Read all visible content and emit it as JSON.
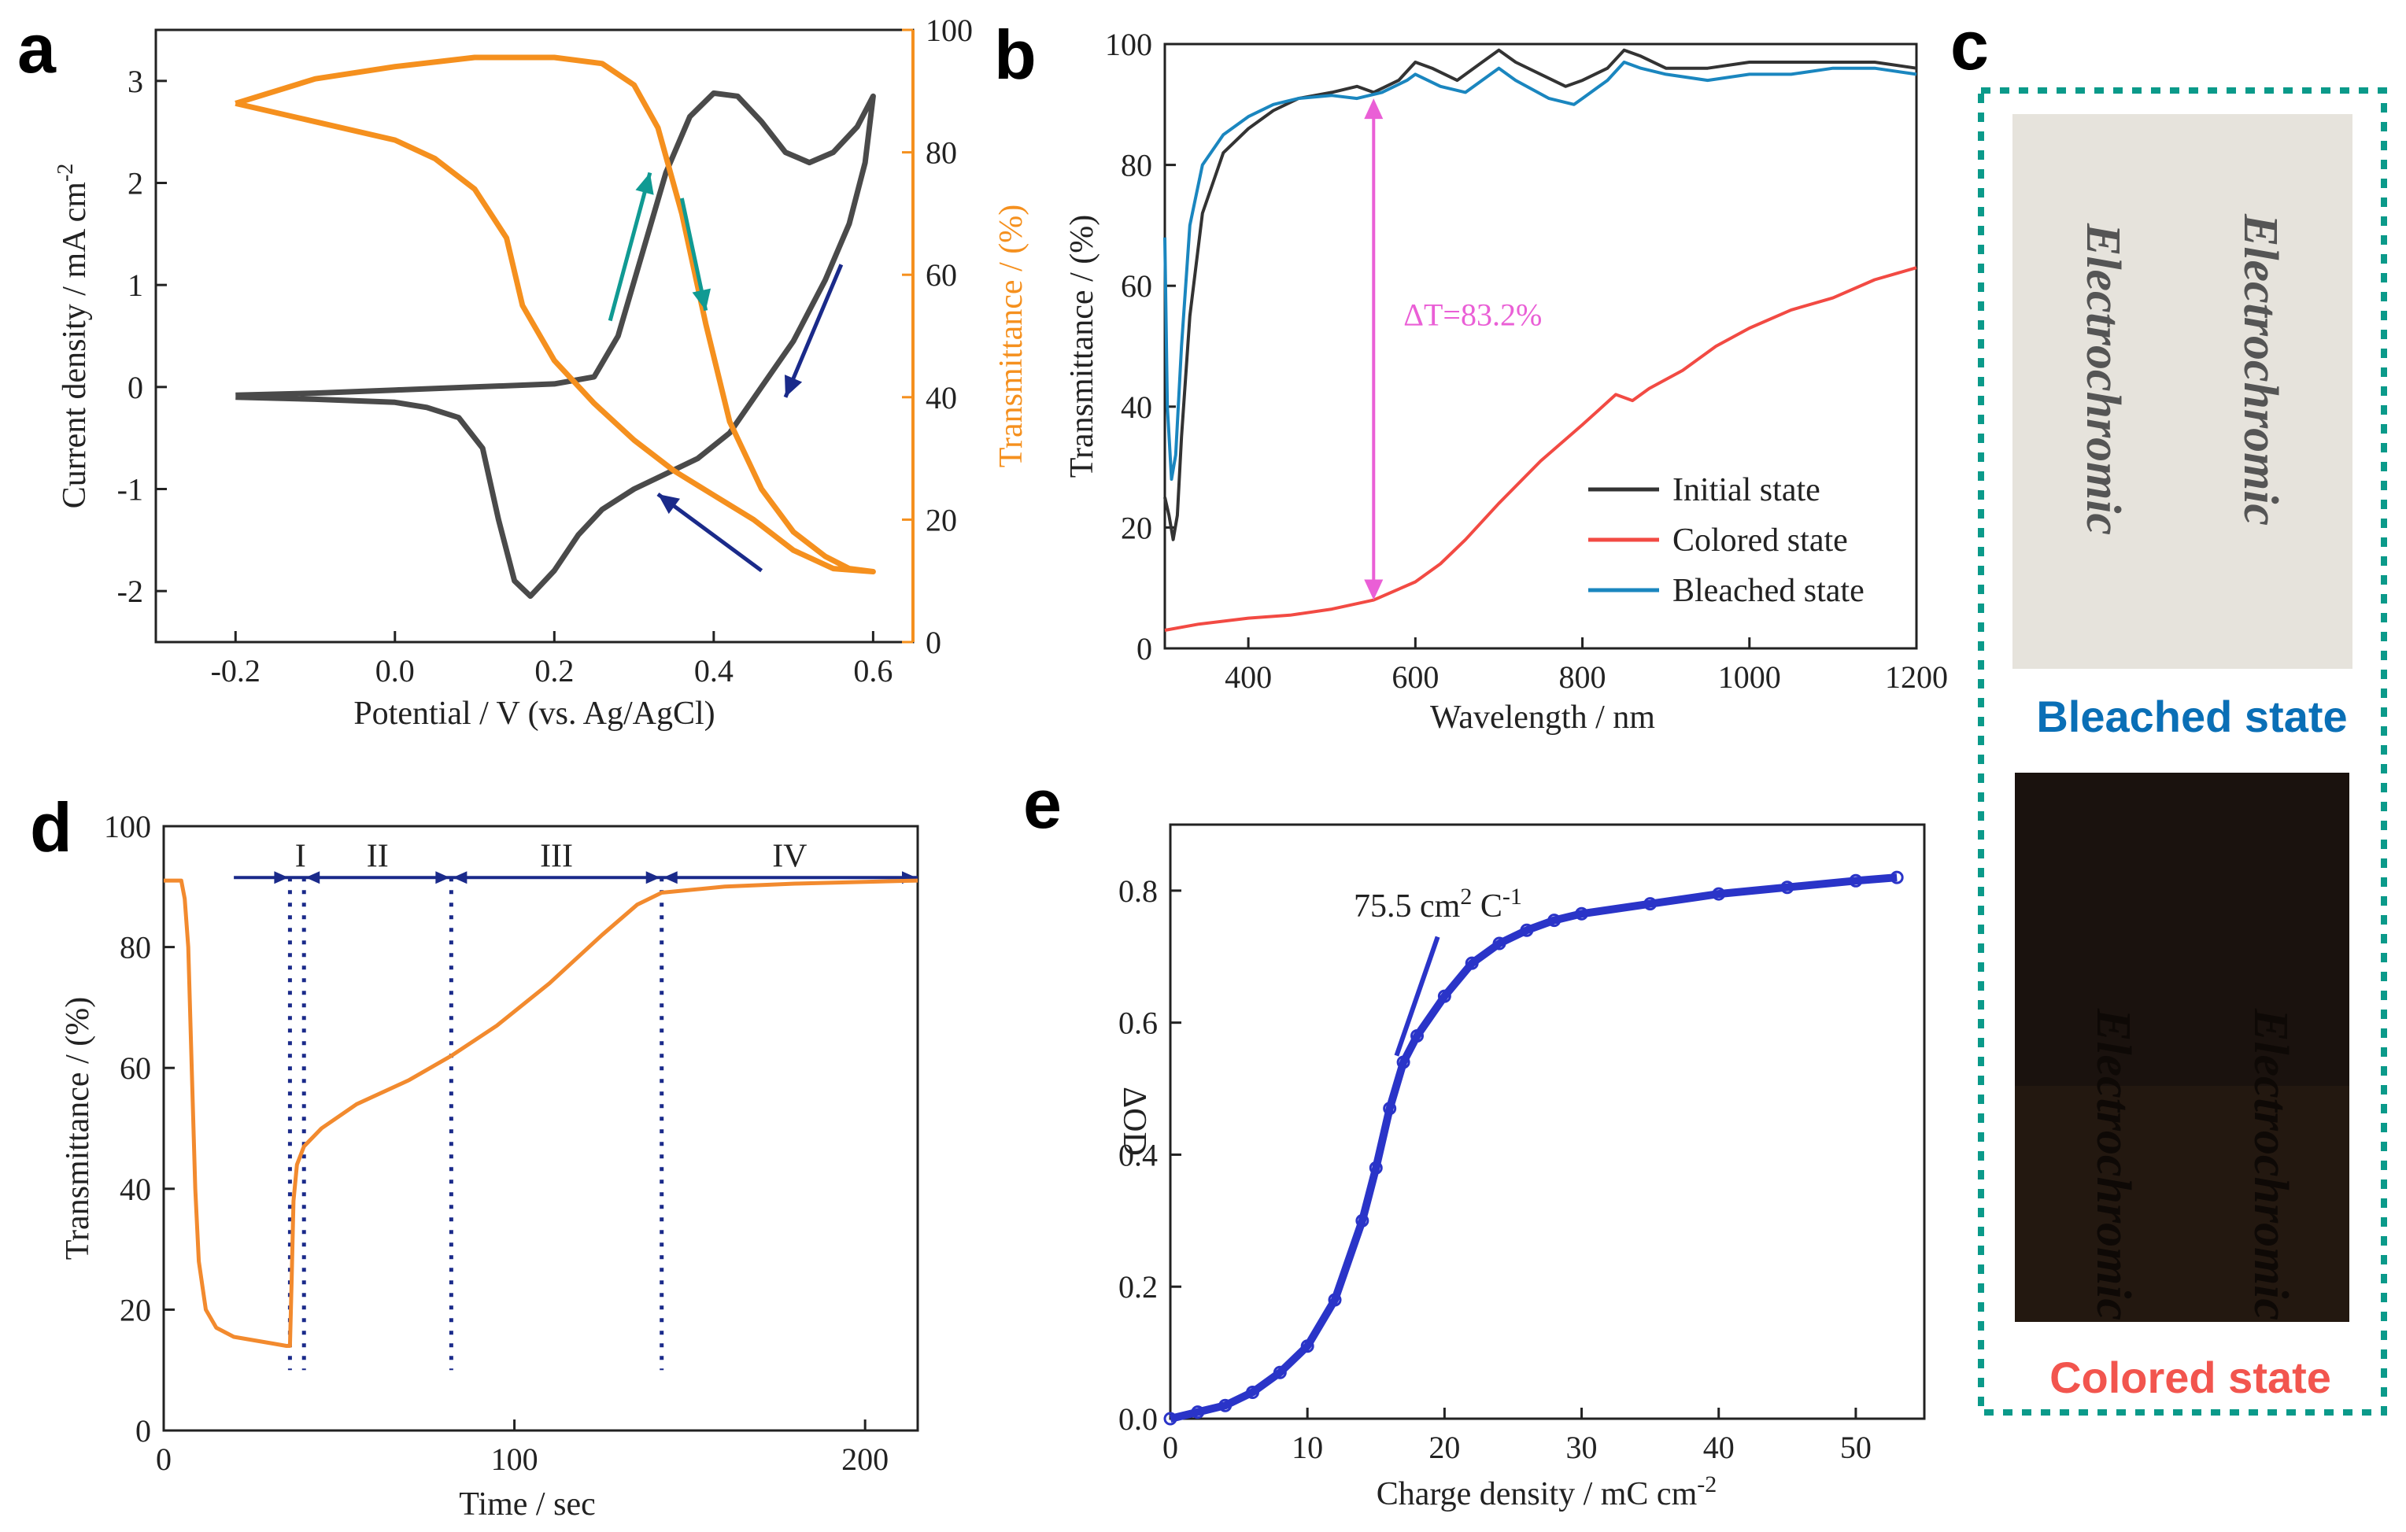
{
  "panels": {
    "a": {
      "label": "a"
    },
    "b": {
      "label": "b"
    },
    "c": {
      "label": "c",
      "top_caption": "Bleached state",
      "bottom_caption": "Colored state",
      "sample_text": "Electrochromic",
      "caption_color_top": "#0a6fb6",
      "caption_color_bottom": "#f2554e",
      "border_color": "#0b9a8a"
    },
    "d": {
      "label": "d"
    },
    "e": {
      "label": "e"
    }
  },
  "chart_data": [
    {
      "id": "a",
      "type": "line",
      "xlabel": "Potential / V (vs. Ag/AgCl)",
      "ylabel": "Current density / mA cm",
      "ylabel_sup": "-2",
      "y2label": "Transmittance / (%)",
      "xlim": [
        -0.3,
        0.65
      ],
      "ylim": [
        -2.5,
        3.5
      ],
      "y2lim": [
        0,
        100
      ],
      "xticks": [
        "-0.2",
        "0.0",
        "0.2",
        "0.4",
        "0.6"
      ],
      "yticks": [
        "-2",
        "-1",
        "0",
        "1",
        "2",
        "3"
      ],
      "y2ticks": [
        "0",
        "20",
        "40",
        "60",
        "80",
        "100"
      ],
      "colors": {
        "cv": "#4a4a4a",
        "trans": "#f5901e",
        "arrow_teal": "#109a93",
        "arrow_navy": "#1a2a8a"
      },
      "series": [
        {
          "name": "Current density (CV)",
          "axis": "left",
          "points": [
            [
              -0.2,
              -0.08
            ],
            [
              -0.1,
              -0.06
            ],
            [
              0.0,
              -0.03
            ],
            [
              0.1,
              0.0
            ],
            [
              0.2,
              0.03
            ],
            [
              0.25,
              0.1
            ],
            [
              0.28,
              0.5
            ],
            [
              0.31,
              1.3
            ],
            [
              0.34,
              2.1
            ],
            [
              0.37,
              2.65
            ],
            [
              0.4,
              2.88
            ],
            [
              0.43,
              2.85
            ],
            [
              0.46,
              2.6
            ],
            [
              0.49,
              2.3
            ],
            [
              0.52,
              2.2
            ],
            [
              0.55,
              2.3
            ],
            [
              0.58,
              2.55
            ],
            [
              0.6,
              2.85
            ],
            [
              0.59,
              2.2
            ],
            [
              0.57,
              1.6
            ],
            [
              0.54,
              1.05
            ],
            [
              0.5,
              0.45
            ],
            [
              0.46,
              0.0
            ],
            [
              0.42,
              -0.45
            ],
            [
              0.38,
              -0.7
            ],
            [
              0.34,
              -0.85
            ],
            [
              0.3,
              -1.0
            ],
            [
              0.26,
              -1.2
            ],
            [
              0.23,
              -1.45
            ],
            [
              0.2,
              -1.8
            ],
            [
              0.17,
              -2.05
            ],
            [
              0.15,
              -1.9
            ],
            [
              0.13,
              -1.3
            ],
            [
              0.11,
              -0.6
            ],
            [
              0.08,
              -0.3
            ],
            [
              0.04,
              -0.2
            ],
            [
              0.0,
              -0.15
            ],
            [
              -0.1,
              -0.12
            ],
            [
              -0.2,
              -0.1
            ]
          ]
        },
        {
          "name": "Transmittance",
          "axis": "right",
          "points": [
            [
              -0.2,
              88
            ],
            [
              -0.1,
              92
            ],
            [
              0.0,
              94
            ],
            [
              0.1,
              95.5
            ],
            [
              0.2,
              95.5
            ],
            [
              0.26,
              94.5
            ],
            [
              0.3,
              91
            ],
            [
              0.33,
              84
            ],
            [
              0.36,
              70
            ],
            [
              0.39,
              52
            ],
            [
              0.42,
              36
            ],
            [
              0.46,
              25
            ],
            [
              0.5,
              18
            ],
            [
              0.54,
              14
            ],
            [
              0.57,
              12
            ],
            [
              0.6,
              11.5
            ],
            [
              0.55,
              12
            ],
            [
              0.5,
              15
            ],
            [
              0.45,
              20
            ],
            [
              0.4,
              24
            ],
            [
              0.35,
              28
            ],
            [
              0.3,
              33
            ],
            [
              0.25,
              39
            ],
            [
              0.2,
              46
            ],
            [
              0.16,
              55
            ],
            [
              0.14,
              66
            ],
            [
              0.1,
              74
            ],
            [
              0.05,
              79
            ],
            [
              0.0,
              82
            ],
            [
              -0.1,
              85
            ],
            [
              -0.2,
              88
            ]
          ]
        }
      ]
    },
    {
      "id": "b",
      "type": "line",
      "xlabel": "Wavelength / nm",
      "ylabel": "Transmittance / (%)",
      "xlim": [
        300,
        1200
      ],
      "ylim": [
        0,
        100
      ],
      "xticks": [
        "400",
        "600",
        "800",
        "1000",
        "1200"
      ],
      "yticks": [
        "0",
        "20",
        "40",
        "60",
        "80",
        "100"
      ],
      "annotation": "ΔT=83.2%",
      "annotation_x_nm": 550,
      "annotation_range": [
        8,
        91
      ],
      "annotation_color": "#ea5fd6",
      "series": [
        {
          "name": "Initial state",
          "color": "#333333",
          "points": [
            [
              300,
              25
            ],
            [
              305,
              22
            ],
            [
              310,
              18
            ],
            [
              315,
              22
            ],
            [
              320,
              35
            ],
            [
              330,
              55
            ],
            [
              345,
              72
            ],
            [
              370,
              82
            ],
            [
              400,
              86
            ],
            [
              430,
              89
            ],
            [
              460,
              91
            ],
            [
              500,
              92
            ],
            [
              530,
              93
            ],
            [
              550,
              92
            ],
            [
              580,
              94
            ],
            [
              600,
              97
            ],
            [
              620,
              96
            ],
            [
              650,
              94
            ],
            [
              680,
              97
            ],
            [
              700,
              99
            ],
            [
              720,
              97
            ],
            [
              750,
              95
            ],
            [
              780,
              93
            ],
            [
              800,
              94
            ],
            [
              830,
              96
            ],
            [
              850,
              99
            ],
            [
              870,
              98
            ],
            [
              900,
              96
            ],
            [
              950,
              96
            ],
            [
              1000,
              97
            ],
            [
              1050,
              97
            ],
            [
              1100,
              97
            ],
            [
              1150,
              97
            ],
            [
              1200,
              96
            ]
          ]
        },
        {
          "name": "Colored state",
          "color": "#f24a43",
          "points": [
            [
              300,
              3
            ],
            [
              340,
              4
            ],
            [
              400,
              5
            ],
            [
              450,
              5.5
            ],
            [
              500,
              6.5
            ],
            [
              550,
              8
            ],
            [
              600,
              11
            ],
            [
              630,
              14
            ],
            [
              660,
              18
            ],
            [
              700,
              24
            ],
            [
              750,
              31
            ],
            [
              800,
              37
            ],
            [
              840,
              42
            ],
            [
              860,
              41
            ],
            [
              880,
              43
            ],
            [
              920,
              46
            ],
            [
              960,
              50
            ],
            [
              1000,
              53
            ],
            [
              1050,
              56
            ],
            [
              1100,
              58
            ],
            [
              1150,
              61
            ],
            [
              1200,
              63
            ]
          ]
        },
        {
          "name": "Bleached state",
          "color": "#1a86bf",
          "points": [
            [
              300,
              68
            ],
            [
              303,
              40
            ],
            [
              308,
              28
            ],
            [
              313,
              32
            ],
            [
              320,
              50
            ],
            [
              330,
              70
            ],
            [
              345,
              80
            ],
            [
              370,
              85
            ],
            [
              400,
              88
            ],
            [
              430,
              90
            ],
            [
              460,
              91
            ],
            [
              500,
              91.5
            ],
            [
              530,
              91
            ],
            [
              560,
              92
            ],
            [
              590,
              94
            ],
            [
              600,
              95
            ],
            [
              630,
              93
            ],
            [
              660,
              92
            ],
            [
              690,
              95
            ],
            [
              700,
              96
            ],
            [
              720,
              94
            ],
            [
              760,
              91
            ],
            [
              790,
              90
            ],
            [
              800,
              91
            ],
            [
              830,
              94
            ],
            [
              850,
              97
            ],
            [
              870,
              96
            ],
            [
              900,
              95
            ],
            [
              950,
              94
            ],
            [
              1000,
              95
            ],
            [
              1050,
              95
            ],
            [
              1100,
              96
            ],
            [
              1150,
              96
            ],
            [
              1200,
              95
            ]
          ]
        }
      ]
    },
    {
      "id": "d",
      "type": "line",
      "xlabel": "Time / sec",
      "ylabel": "Transmittance / (%)",
      "xlim": [
        0,
        215
      ],
      "ylim": [
        0,
        100
      ],
      "xticks": [
        "0",
        "100",
        "200"
      ],
      "yticks": [
        "0",
        "20",
        "40",
        "60",
        "80",
        "100"
      ],
      "color": "#f28a2e",
      "regions": [
        "I",
        "II",
        "III",
        "IV"
      ],
      "region_bounds": [
        20,
        36,
        40,
        82,
        142,
        215
      ],
      "series": [
        {
          "name": "Transmittance",
          "points": [
            [
              0,
              91
            ],
            [
              5,
              91
            ],
            [
              6,
              88
            ],
            [
              7,
              80
            ],
            [
              8,
              60
            ],
            [
              9,
              40
            ],
            [
              10,
              28
            ],
            [
              12,
              20
            ],
            [
              15,
              17
            ],
            [
              20,
              15.5
            ],
            [
              30,
              14.5
            ],
            [
              35,
              14
            ],
            [
              36,
              14
            ],
            [
              36.5,
              25
            ],
            [
              37,
              38
            ],
            [
              38,
              44
            ],
            [
              40,
              47
            ],
            [
              45,
              50
            ],
            [
              55,
              54
            ],
            [
              70,
              58
            ],
            [
              82,
              62
            ],
            [
              95,
              67
            ],
            [
              110,
              74
            ],
            [
              125,
              82
            ],
            [
              135,
              87
            ],
            [
              142,
              89
            ],
            [
              160,
              90
            ],
            [
              180,
              90.5
            ],
            [
              200,
              90.8
            ],
            [
              215,
              91
            ]
          ]
        }
      ]
    },
    {
      "id": "e",
      "type": "scatter",
      "xlabel": "Charge density  / mC cm",
      "xlabel_sup": "-2",
      "ylabel": "ΔOD",
      "xlim": [
        0,
        55
      ],
      "ylim": [
        0,
        0.9
      ],
      "xticks": [
        "0",
        "10",
        "20",
        "30",
        "40",
        "50"
      ],
      "yticks": [
        "0.0",
        "0.2",
        "0.4",
        "0.6",
        "0.8"
      ],
      "color": "#2a34c8",
      "fit_label": "75.5 cm",
      "fit_label_sup": "2",
      "fit_label_tail": " C",
      "fit_label_tail_sup": "-1",
      "fit_line": [
        [
          16.5,
          0.55
        ],
        [
          19.5,
          0.73
        ]
      ],
      "series": [
        {
          "name": "ΔOD",
          "points": [
            [
              0,
              0.0
            ],
            [
              2,
              0.01
            ],
            [
              4,
              0.02
            ],
            [
              6,
              0.04
            ],
            [
              8,
              0.07
            ],
            [
              10,
              0.11
            ],
            [
              12,
              0.18
            ],
            [
              14,
              0.3
            ],
            [
              15,
              0.38
            ],
            [
              16,
              0.47
            ],
            [
              17,
              0.54
            ],
            [
              18,
              0.58
            ],
            [
              20,
              0.64
            ],
            [
              22,
              0.69
            ],
            [
              24,
              0.72
            ],
            [
              26,
              0.74
            ],
            [
              28,
              0.755
            ],
            [
              30,
              0.765
            ],
            [
              35,
              0.78
            ],
            [
              40,
              0.795
            ],
            [
              45,
              0.805
            ],
            [
              50,
              0.815
            ],
            [
              53,
              0.82
            ]
          ]
        }
      ]
    }
  ]
}
